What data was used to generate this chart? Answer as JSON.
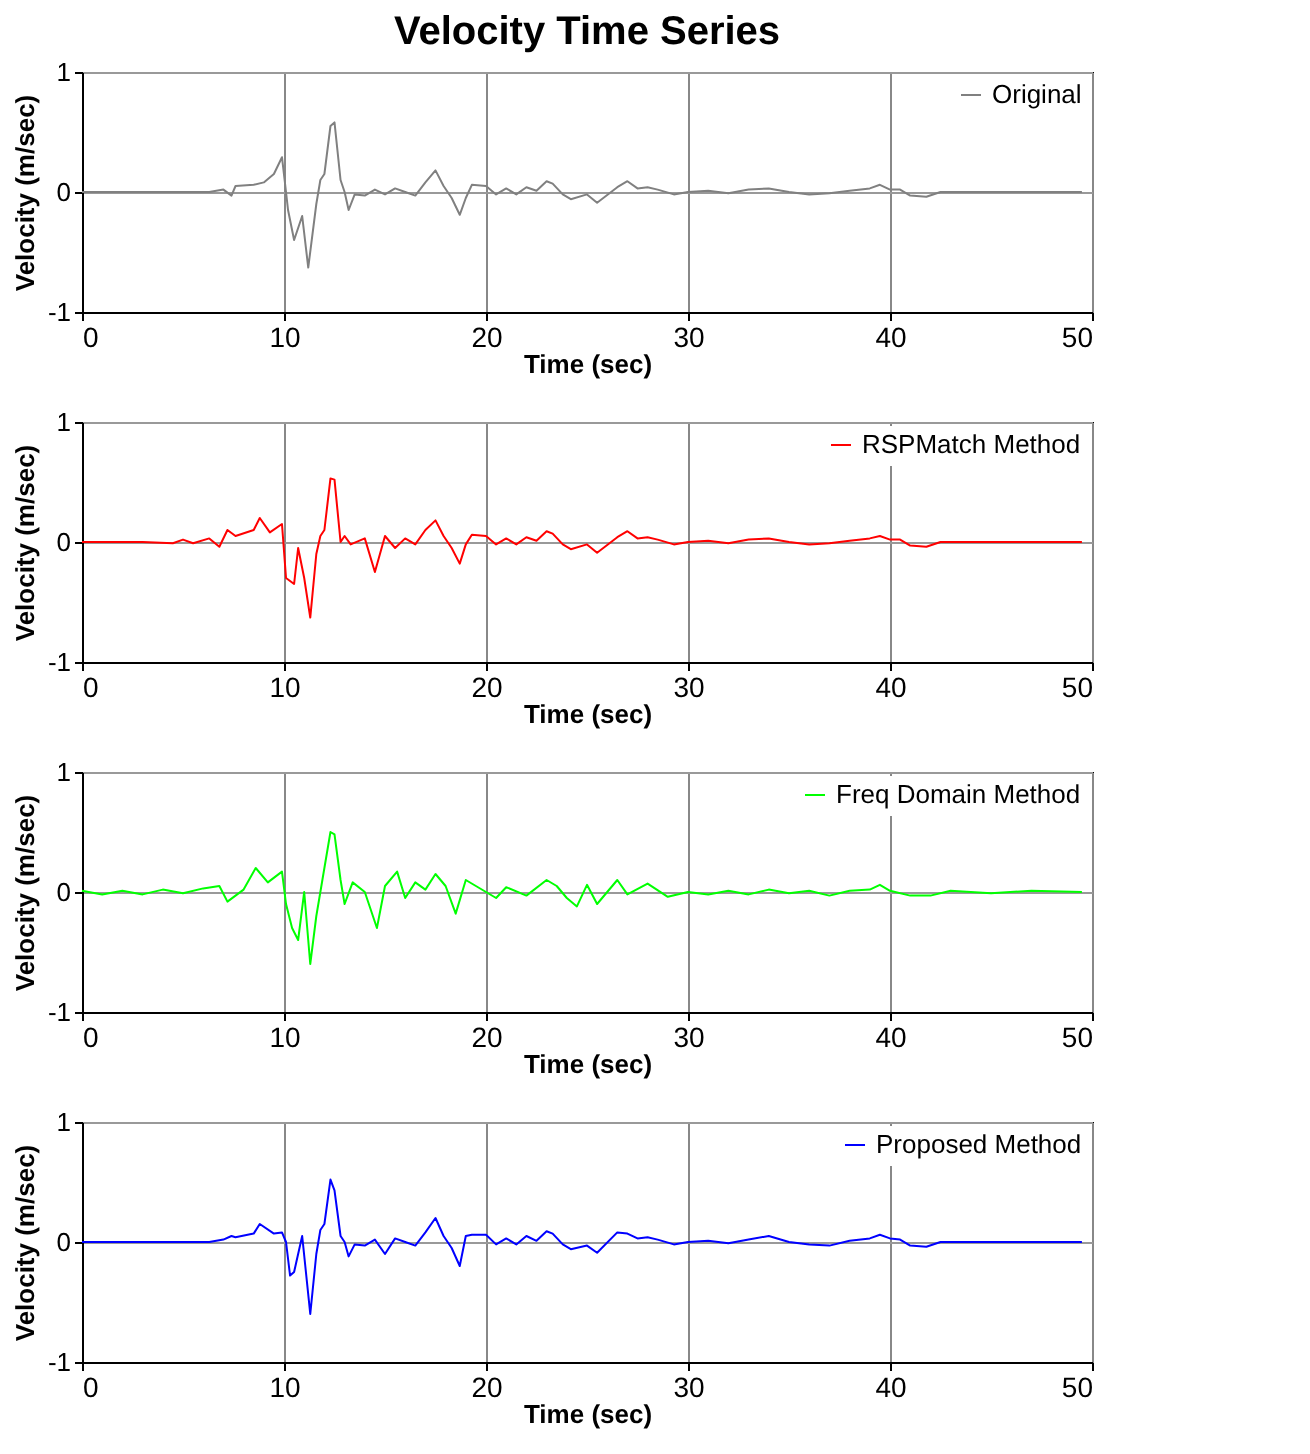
{
  "chart_data": [
    {
      "type": "line",
      "title": "Velocity Time Series",
      "xlabel": "Time (sec)",
      "ylabel": "Velocity (m/sec)",
      "xlim": [
        0,
        50
      ],
      "ylim": [
        -1,
        1
      ],
      "xticks": [
        0,
        10,
        20,
        30,
        40,
        50
      ],
      "yticks": [
        -1,
        0,
        1
      ],
      "grid": true,
      "legend": "top right",
      "series": [
        {
          "name": "Original",
          "color": "#808080",
          "x": [
            0,
            6.3,
            7.0,
            7.4,
            7.6,
            8.5,
            9.0,
            9.5,
            9.9,
            10.1,
            10.2,
            10.5,
            10.9,
            11.2,
            11.6,
            11.8,
            12.0,
            12.3,
            12.5,
            12.8,
            13.0,
            13.2,
            13.5,
            14,
            14.5,
            15,
            15.5,
            16,
            16.5,
            17,
            17.5,
            17.9,
            18.3,
            18.7,
            19.0,
            19.3,
            20,
            20.5,
            21,
            21.5,
            22,
            22.5,
            23,
            23.3,
            23.8,
            24.2,
            25,
            25.5,
            26.5,
            27,
            27.5,
            28,
            28.5,
            29.3,
            30,
            31,
            32,
            33,
            34,
            35,
            36,
            37,
            38,
            39,
            39.5,
            40,
            40.5,
            41,
            41.8,
            42.5,
            49.5
          ],
          "values": [
            0,
            0,
            0.02,
            -0.03,
            0.05,
            0.06,
            0.08,
            0.15,
            0.29,
            0,
            -0.15,
            -0.4,
            -0.2,
            -0.63,
            -0.1,
            0.1,
            0.15,
            0.55,
            0.58,
            0.1,
            0,
            -0.15,
            -0.02,
            -0.03,
            0.02,
            -0.02,
            0.03,
            0,
            -0.03,
            0.08,
            0.18,
            0.05,
            -0.05,
            -0.19,
            -0.05,
            0.06,
            0.05,
            -0.02,
            0.03,
            -0.02,
            0.04,
            0.01,
            0.09,
            0.07,
            -0.02,
            -0.06,
            -0.02,
            -0.09,
            0.04,
            0.09,
            0.03,
            0.04,
            0.02,
            -0.02,
            0,
            0.01,
            -0.01,
            0.02,
            0.03,
            0,
            -0.02,
            -0.01,
            0.01,
            0.03,
            0.06,
            0.02,
            0.02,
            -0.03,
            -0.04,
            0,
            0
          ]
        }
      ]
    },
    {
      "type": "line",
      "xlabel": "Time (sec)",
      "ylabel": "Velocity (m/sec)",
      "xlim": [
        0,
        50
      ],
      "ylim": [
        -1,
        1
      ],
      "xticks": [
        0,
        10,
        20,
        30,
        40,
        50
      ],
      "yticks": [
        -1,
        0,
        1
      ],
      "grid": true,
      "legend": "top right",
      "series": [
        {
          "name": "RSPMatch Method",
          "color": "#ff0000",
          "x": [
            0,
            3,
            4.5,
            5,
            5.5,
            6.3,
            6.8,
            7.2,
            7.6,
            8.5,
            8.8,
            9.3,
            9.9,
            10.1,
            10.5,
            10.7,
            11.0,
            11.3,
            11.6,
            11.8,
            12.0,
            12.3,
            12.5,
            12.8,
            13.0,
            13.3,
            14.0,
            14.5,
            15,
            15.5,
            16,
            16.5,
            17,
            17.5,
            17.9,
            18.3,
            18.7,
            19.0,
            19.3,
            20,
            20.5,
            21,
            21.5,
            22,
            22.5,
            23,
            23.3,
            23.8,
            24.2,
            25,
            25.5,
            26.5,
            27,
            27.5,
            28,
            28.5,
            29.3,
            30,
            31,
            32,
            33,
            34,
            35,
            36,
            37,
            38,
            39,
            39.5,
            40,
            40.5,
            41,
            41.8,
            42.5,
            49.5
          ],
          "values": [
            0,
            0,
            -0.01,
            0.02,
            -0.01,
            0.03,
            -0.04,
            0.1,
            0.05,
            0.1,
            0.2,
            0.08,
            0.15,
            -0.3,
            -0.35,
            -0.05,
            -0.3,
            -0.63,
            -0.1,
            0.05,
            0.1,
            0.53,
            0.52,
            0,
            0.05,
            -0.02,
            0.03,
            -0.25,
            0.05,
            -0.05,
            0.03,
            -0.02,
            0.1,
            0.18,
            0.05,
            -0.05,
            -0.18,
            -0.02,
            0.06,
            0.05,
            -0.02,
            0.03,
            -0.02,
            0.04,
            0.01,
            0.09,
            0.07,
            -0.02,
            -0.06,
            -0.02,
            -0.09,
            0.04,
            0.09,
            0.03,
            0.04,
            0.02,
            -0.02,
            0,
            0.01,
            -0.01,
            0.02,
            0.03,
            0,
            -0.02,
            -0.01,
            0.01,
            0.03,
            0.05,
            0.02,
            0.02,
            -0.03,
            -0.04,
            0,
            0
          ]
        }
      ]
    },
    {
      "type": "line",
      "xlabel": "Time (sec)",
      "ylabel": "Velocity (m/sec)",
      "xlim": [
        0,
        50
      ],
      "ylim": [
        -1,
        1
      ],
      "xticks": [
        0,
        10,
        20,
        30,
        40,
        50
      ],
      "yticks": [
        -1,
        0,
        1
      ],
      "grid": true,
      "legend": "top right",
      "series": [
        {
          "name": "Freq Domain Method",
          "color": "#00ff00",
          "x": [
            0,
            1,
            2,
            3,
            4,
            5,
            6,
            6.8,
            7.2,
            8,
            8.6,
            9.2,
            9.9,
            10.1,
            10.4,
            10.7,
            11.0,
            11.3,
            11.6,
            11.9,
            12.3,
            12.5,
            12.8,
            13.0,
            13.4,
            14,
            14.6,
            15,
            15.6,
            16,
            16.5,
            17,
            17.5,
            18,
            18.5,
            19,
            19.5,
            20,
            20.5,
            21,
            22,
            23,
            23.5,
            24,
            24.5,
            25,
            25.5,
            26.5,
            27,
            28,
            29,
            30,
            31,
            32,
            33,
            34,
            35,
            36,
            37,
            38,
            39,
            39.5,
            40,
            41,
            42,
            43,
            45,
            47,
            49.5
          ],
          "values": [
            0.01,
            -0.02,
            0.01,
            -0.02,
            0.02,
            -0.01,
            0.03,
            0.05,
            -0.08,
            0.02,
            0.2,
            0.08,
            0.17,
            -0.1,
            -0.3,
            -0.4,
            0,
            -0.6,
            -0.2,
            0.1,
            0.5,
            0.48,
            0.1,
            -0.1,
            0.08,
            0,
            -0.3,
            0.05,
            0.17,
            -0.05,
            0.08,
            0.02,
            0.15,
            0.05,
            -0.18,
            0.1,
            0.05,
            0,
            -0.05,
            0.04,
            -0.03,
            0.1,
            0.05,
            -0.05,
            -0.12,
            0.06,
            -0.1,
            0.1,
            -0.02,
            0.07,
            -0.04,
            0,
            -0.02,
            0.01,
            -0.02,
            0.02,
            -0.01,
            0.01,
            -0.03,
            0.01,
            0.02,
            0.06,
            0.01,
            -0.03,
            -0.03,
            0.01,
            -0.01,
            0.01,
            0
          ]
        }
      ]
    },
    {
      "type": "line",
      "xlabel": "Time (sec)",
      "ylabel": "Velocity (m/sec)",
      "xlim": [
        0,
        50
      ],
      "ylim": [
        -1,
        1
      ],
      "xticks": [
        0,
        10,
        20,
        30,
        40,
        50
      ],
      "yticks": [
        -1,
        0,
        1
      ],
      "grid": true,
      "legend": "top right",
      "series": [
        {
          "name": "Proposed Method",
          "color": "#0000ff",
          "x": [
            0,
            6.3,
            7.0,
            7.4,
            7.6,
            8.5,
            8.8,
            9.5,
            9.9,
            10.1,
            10.3,
            10.5,
            10.9,
            11.3,
            11.6,
            11.8,
            12.0,
            12.3,
            12.5,
            12.8,
            13.0,
            13.2,
            13.5,
            14,
            14.5,
            15,
            15.5,
            16,
            16.5,
            17,
            17.5,
            17.9,
            18.3,
            18.7,
            19.0,
            19.3,
            20,
            20.5,
            21,
            21.5,
            22,
            22.5,
            23,
            23.3,
            23.8,
            24.2,
            25,
            25.5,
            26.5,
            27,
            27.5,
            28,
            28.5,
            29.3,
            30,
            31,
            32,
            33,
            34,
            35,
            36,
            37,
            38,
            39,
            39.5,
            40,
            40.5,
            41,
            41.8,
            42.5,
            49.5
          ],
          "values": [
            0,
            0,
            0.02,
            0.05,
            0.04,
            0.07,
            0.15,
            0.07,
            0.08,
            0,
            -0.28,
            -0.25,
            0.05,
            -0.6,
            -0.1,
            0.1,
            0.15,
            0.52,
            0.43,
            0.05,
            0,
            -0.12,
            -0.02,
            -0.03,
            0.02,
            -0.1,
            0.03,
            0,
            -0.03,
            0.08,
            0.2,
            0.05,
            -0.05,
            -0.2,
            0.05,
            0.06,
            0.06,
            -0.02,
            0.03,
            -0.02,
            0.05,
            0.01,
            0.09,
            0.07,
            -0.02,
            -0.06,
            -0.03,
            -0.09,
            0.08,
            0.07,
            0.03,
            0.04,
            0.02,
            -0.02,
            0,
            0.01,
            -0.01,
            0.02,
            0.05,
            0,
            -0.02,
            -0.03,
            0.01,
            0.03,
            0.06,
            0.03,
            0.02,
            -0.03,
            -0.04,
            0,
            0
          ]
        }
      ]
    }
  ]
}
